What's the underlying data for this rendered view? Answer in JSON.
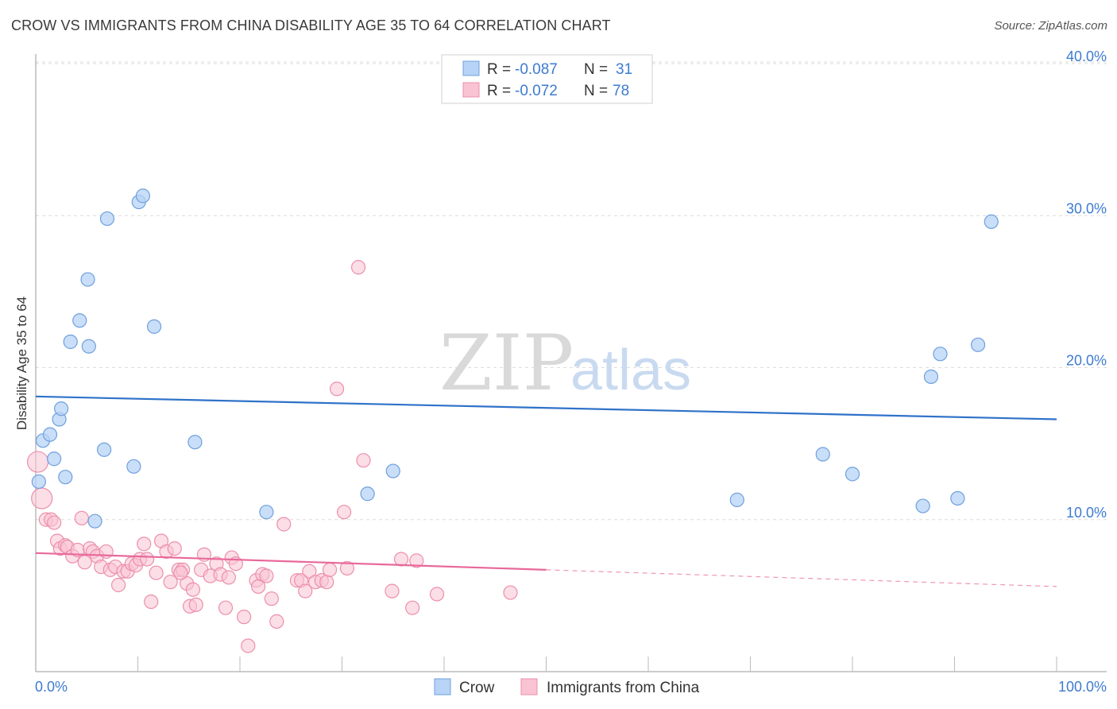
{
  "title": "CROW VS IMMIGRANTS FROM CHINA DISABILITY AGE 35 TO 64 CORRELATION CHART",
  "source": "Source: ZipAtlas.com",
  "watermark": {
    "zip": "ZIP",
    "atlas": "atlas"
  },
  "colors": {
    "crow_fill": "#b7d3f5",
    "crow_stroke": "#6fa0dd",
    "crow_line": "#2f72c9",
    "china_fill": "#f9c3d3",
    "china_stroke": "#ec8fab",
    "china_line": "#e8689a",
    "grid": "#dcdcdc",
    "axis_text": "#3d7bd0"
  },
  "legend": {
    "rows": [
      {
        "r_label": "R = ",
        "r_value": "-0.087",
        "n_label": "N = ",
        "n_value": "31"
      },
      {
        "r_label": "R = ",
        "r_value": "-0.072",
        "n_label": "N = ",
        "n_value": "78"
      }
    ]
  },
  "chart_data": {
    "type": "scatter",
    "title": "CROW VS IMMIGRANTS FROM CHINA DISABILITY AGE 35 TO 64 CORRELATION CHART",
    "xlabel": "",
    "ylabel": "Disability Age 35 to 64",
    "xlim": [
      0,
      100
    ],
    "ylim": [
      0,
      40
    ],
    "x_tick_labels": [
      "0.0%",
      "100.0%"
    ],
    "y_ticks": [
      10,
      20,
      30,
      40
    ],
    "y_tick_labels": [
      "10.0%",
      "20.0%",
      "30.0%",
      "40.0%"
    ],
    "series": [
      {
        "name": "Crow",
        "r": -0.087,
        "n": 31,
        "trend": {
          "x0": 0,
          "y0": 18.1,
          "x1": 100,
          "y1": 16.6
        },
        "points": [
          [
            0.3,
            12.5
          ],
          [
            0.7,
            15.2
          ],
          [
            1.4,
            15.6
          ],
          [
            1.8,
            14.0
          ],
          [
            2.3,
            16.6
          ],
          [
            2.5,
            17.3
          ],
          [
            2.9,
            12.8
          ],
          [
            3.4,
            21.7
          ],
          [
            4.3,
            23.1
          ],
          [
            5.1,
            25.8
          ],
          [
            5.2,
            21.4
          ],
          [
            5.8,
            9.9
          ],
          [
            6.7,
            14.6
          ],
          [
            7.0,
            29.8
          ],
          [
            9.6,
            13.5
          ],
          [
            10.1,
            30.9
          ],
          [
            10.5,
            31.3
          ],
          [
            11.6,
            22.7
          ],
          [
            15.6,
            15.1
          ],
          [
            22.6,
            10.5
          ],
          [
            32.5,
            11.7
          ],
          [
            35.0,
            13.2
          ],
          [
            68.7,
            11.3
          ],
          [
            77.1,
            14.3
          ],
          [
            80.0,
            13.0
          ],
          [
            86.9,
            10.9
          ],
          [
            87.7,
            19.4
          ],
          [
            88.6,
            20.9
          ],
          [
            90.3,
            11.4
          ],
          [
            92.3,
            21.5
          ],
          [
            93.6,
            29.6
          ]
        ]
      },
      {
        "name": "Immigrants from China",
        "r": -0.072,
        "n": 78,
        "trend": {
          "x0": 0,
          "y0": 7.8,
          "x1": 50,
          "y1": 6.7
        },
        "trend_extrapolated": {
          "x0": 50,
          "y0": 6.7,
          "x1": 100,
          "y1": 5.6
        },
        "points": [
          [
            0.2,
            13.8
          ],
          [
            0.6,
            11.4
          ],
          [
            1.0,
            10.0
          ],
          [
            1.5,
            10.0
          ],
          [
            1.8,
            9.8
          ],
          [
            2.1,
            8.6
          ],
          [
            2.4,
            8.1
          ],
          [
            2.9,
            8.3
          ],
          [
            3.1,
            8.2
          ],
          [
            3.6,
            7.6
          ],
          [
            4.1,
            8.0
          ],
          [
            4.5,
            10.1
          ],
          [
            4.8,
            7.2
          ],
          [
            5.3,
            8.1
          ],
          [
            5.6,
            7.9
          ],
          [
            6.0,
            7.6
          ],
          [
            6.4,
            6.9
          ],
          [
            6.9,
            7.9
          ],
          [
            7.3,
            6.7
          ],
          [
            7.8,
            6.9
          ],
          [
            8.1,
            5.7
          ],
          [
            8.6,
            6.6
          ],
          [
            9.0,
            6.6
          ],
          [
            9.4,
            7.1
          ],
          [
            9.8,
            7.0
          ],
          [
            10.2,
            7.4
          ],
          [
            10.6,
            8.4
          ],
          [
            10.9,
            7.4
          ],
          [
            11.3,
            4.6
          ],
          [
            11.8,
            6.5
          ],
          [
            12.3,
            8.6
          ],
          [
            12.8,
            7.9
          ],
          [
            13.2,
            5.9
          ],
          [
            13.6,
            8.1
          ],
          [
            14.0,
            6.7
          ],
          [
            14.4,
            6.7
          ],
          [
            14.8,
            5.8
          ],
          [
            15.1,
            4.3
          ],
          [
            15.4,
            5.4
          ],
          [
            15.7,
            4.4
          ],
          [
            16.2,
            6.7
          ],
          [
            16.5,
            7.7
          ],
          [
            17.1,
            6.3
          ],
          [
            17.7,
            7.1
          ],
          [
            18.1,
            6.4
          ],
          [
            18.6,
            4.2
          ],
          [
            18.9,
            6.2
          ],
          [
            19.2,
            7.5
          ],
          [
            19.6,
            7.1
          ],
          [
            20.4,
            3.6
          ],
          [
            20.8,
            1.7
          ],
          [
            21.6,
            6.0
          ],
          [
            21.8,
            5.6
          ],
          [
            22.2,
            6.4
          ],
          [
            22.6,
            6.3
          ],
          [
            23.1,
            4.8
          ],
          [
            23.6,
            3.3
          ],
          [
            24.3,
            9.7
          ],
          [
            25.6,
            6.0
          ],
          [
            26.0,
            6.0
          ],
          [
            26.4,
            5.3
          ],
          [
            26.8,
            6.6
          ],
          [
            27.4,
            5.9
          ],
          [
            28.0,
            6.0
          ],
          [
            28.5,
            5.9
          ],
          [
            28.8,
            6.7
          ],
          [
            29.5,
            18.6
          ],
          [
            30.2,
            10.5
          ],
          [
            30.5,
            6.8
          ],
          [
            32.1,
            13.9
          ],
          [
            31.6,
            26.6
          ],
          [
            34.9,
            5.3
          ],
          [
            35.8,
            7.4
          ],
          [
            36.9,
            4.2
          ],
          [
            37.3,
            7.3
          ],
          [
            39.3,
            5.1
          ],
          [
            46.5,
            5.2
          ],
          [
            14.2,
            6.5
          ]
        ]
      }
    ]
  },
  "bottom_legend": [
    {
      "label": "Crow"
    },
    {
      "label": "Immigrants from China"
    }
  ]
}
